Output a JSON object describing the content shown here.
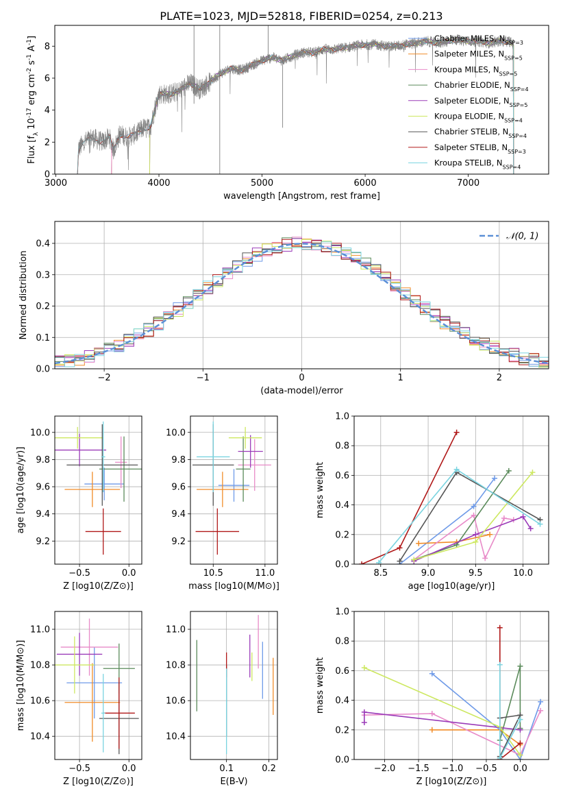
{
  "figure": {
    "title": "PLATE=1023, MJD=52818, FIBERID=0254, z=0.213"
  },
  "palette": [
    "#6e9ae8",
    "#f08c28",
    "#e88ac8",
    "#5a8a5a",
    "#9a3ab8",
    "#cde860",
    "#555555",
    "#b01818",
    "#7ad4e0"
  ],
  "chart_data": [
    {
      "id": "spectrum",
      "type": "line",
      "title": "PLATE=1023, MJD=52818, FIBERID=0254, z=0.213",
      "xlabel": "wavelength [Angstrom, rest frame]",
      "ylabel": "Flux [f_λ 10^-17 erg cm^-2 s^-1 A^-1]",
      "xlim": [
        2990,
        7780
      ],
      "ylim": [
        0,
        9.3
      ],
      "xticks": [
        3000,
        4000,
        5000,
        6000,
        7000
      ],
      "yticks": [
        0,
        2,
        4,
        6,
        8
      ],
      "grid": false,
      "legend_position": "right",
      "data_trace_color": "#808080",
      "data_trace_points": [
        [
          3210,
          0
        ],
        [
          3220,
          1.6
        ],
        [
          3280,
          2.0
        ],
        [
          3350,
          2.3
        ],
        [
          3450,
          2.0
        ],
        [
          3520,
          2.3
        ],
        [
          3560,
          1.5
        ],
        [
          3620,
          2.5
        ],
        [
          3700,
          2.3
        ],
        [
          3800,
          2.6
        ],
        [
          3850,
          2.9
        ],
        [
          3880,
          2.8
        ],
        [
          3920,
          3.0
        ],
        [
          3960,
          4.1
        ],
        [
          4000,
          5.0
        ],
        [
          4100,
          5.0
        ],
        [
          4200,
          5.2
        ],
        [
          4300,
          5.7
        ],
        [
          4400,
          5.3
        ],
        [
          4500,
          5.8
        ],
        [
          4600,
          6.3
        ],
        [
          4700,
          6.6
        ],
        [
          4800,
          6.5
        ],
        [
          4900,
          6.8
        ],
        [
          5000,
          7.1
        ],
        [
          5100,
          7.3
        ],
        [
          5200,
          7.1
        ],
        [
          5300,
          7.4
        ],
        [
          5400,
          7.6
        ],
        [
          5500,
          7.6
        ],
        [
          5600,
          7.8
        ],
        [
          5700,
          7.8
        ],
        [
          5800,
          7.9
        ],
        [
          5900,
          8.0
        ],
        [
          6000,
          8.1
        ],
        [
          6100,
          8.1
        ],
        [
          6200,
          8.0
        ],
        [
          6300,
          8.0
        ],
        [
          6400,
          8.1
        ],
        [
          6500,
          8.2
        ],
        [
          6600,
          8.3
        ],
        [
          6700,
          8.2
        ],
        [
          6800,
          8.3
        ],
        [
          6900,
          8.4
        ],
        [
          7000,
          8.3
        ],
        [
          7100,
          8.3
        ],
        [
          7200,
          8.2
        ],
        [
          7300,
          8.3
        ],
        [
          7400,
          8.3
        ],
        [
          7440,
          8.1
        ]
      ],
      "series": [
        {
          "name": "Chabrier MILES, N_SSP=3",
          "color": "#6e9ae8",
          "x_start": 3540
        },
        {
          "name": "Salpeter MILES, N_SSP=5",
          "color": "#f08c28",
          "x_start": 3540
        },
        {
          "name": "Kroupa MILES, N_SSP=5",
          "color": "#e88ac8",
          "x_start": 3540
        },
        {
          "name": "Chabrier ELODIE, N_SSP=4",
          "color": "#5a8a5a",
          "x_start": 3910
        },
        {
          "name": "Salpeter ELODIE, N_SSP=5",
          "color": "#9a3ab8",
          "x_start": 3910
        },
        {
          "name": "Kroupa ELODIE, N_SSP=4",
          "color": "#cde860",
          "x_start": 3910
        },
        {
          "name": "Chabrier STELIB, N_SSP=4",
          "color": "#555555",
          "x_start": 3210
        },
        {
          "name": "Salpeter STELIB, N_SSP=3",
          "color": "#b01818",
          "x_start": 3210
        },
        {
          "name": "Kroupa STELIB, N_SSP=4",
          "color": "#7ad4e0",
          "x_start": 3210
        }
      ]
    },
    {
      "id": "residuals",
      "type": "line",
      "xlabel": "(data-model)/error",
      "ylabel": "Normed distribution",
      "xlim": [
        -2.5,
        2.5
      ],
      "ylim": [
        0,
        0.47
      ],
      "xticks": [
        -2,
        -1,
        0,
        1,
        2
      ],
      "yticks": [
        0.0,
        0.1,
        0.2,
        0.3,
        0.4
      ],
      "grid": true,
      "legend_position": "top-right",
      "reference": {
        "name": "𝒩(0, 1)",
        "color": "#5b8fd6",
        "mean": 0,
        "sigma": 1
      },
      "bin_width": 0.1,
      "histogram_x_start": -2.5
    },
    {
      "id": "age-vs-Z",
      "type": "scatter",
      "xlabel": "Z [log10(Z/Z⊙)]",
      "ylabel": "age [log10(age/yr)]",
      "xlim": [
        -0.75,
        0.13
      ],
      "ylim": [
        9.03,
        10.12
      ],
      "xticks": [
        -0.5,
        0.0
      ],
      "yticks": [
        9.2,
        9.4,
        9.6,
        9.8,
        10.0
      ],
      "grid": true,
      "points": [
        {
          "color": "#6e9ae8",
          "x": -0.25,
          "y": 9.62,
          "xerr": 0.2,
          "yerr": 0.12
        },
        {
          "color": "#f08c28",
          "x": -0.37,
          "y": 9.58,
          "xerr": 0.28,
          "yerr": 0.13
        },
        {
          "color": "#e88ac8",
          "x": -0.08,
          "y": 9.78,
          "xerr": 0.06,
          "yerr": 0.19
        },
        {
          "color": "#5a8a5a",
          "x": -0.05,
          "y": 9.73,
          "xerr": 0.25,
          "yerr": 0.24
        },
        {
          "color": "#9a3ab8",
          "x": -0.5,
          "y": 9.87,
          "xerr": 0.27,
          "yerr": 0.12
        },
        {
          "color": "#cde860",
          "x": -0.52,
          "y": 9.96,
          "xerr": 0.26,
          "yerr": 0.08
        },
        {
          "color": "#555555",
          "x": -0.27,
          "y": 9.76,
          "xerr": 0.36,
          "yerr": 0.3
        },
        {
          "color": "#b01818",
          "x": -0.26,
          "y": 9.27,
          "xerr": 0.18,
          "yerr": 0.17
        },
        {
          "color": "#7ad4e0",
          "x": -0.26,
          "y": 9.82,
          "xerr": 0.02,
          "yerr": 0.26
        }
      ]
    },
    {
      "id": "age-vs-mass",
      "type": "scatter",
      "xlabel": "mass [log10(M/M⊙)]",
      "ylabel": "",
      "xlim": [
        10.28,
        11.12
      ],
      "ylim": [
        9.03,
        10.12
      ],
      "xticks": [
        10.5,
        11.0
      ],
      "yticks": [
        9.2,
        9.4,
        9.6,
        9.8,
        10.0
      ],
      "grid": true,
      "points": [
        {
          "color": "#6e9ae8",
          "x": 10.7,
          "y": 9.61,
          "xerr": 0.15,
          "yerr": 0.12
        },
        {
          "color": "#f08c28",
          "x": 10.59,
          "y": 9.58,
          "xerr": 0.25,
          "yerr": 0.13
        },
        {
          "color": "#e88ac8",
          "x": 10.9,
          "y": 9.76,
          "xerr": 0.16,
          "yerr": 0.19
        },
        {
          "color": "#5a8a5a",
          "x": 10.79,
          "y": 9.73,
          "xerr": 0.07,
          "yerr": 0.24
        },
        {
          "color": "#9a3ab8",
          "x": 10.86,
          "y": 9.86,
          "xerr": 0.12,
          "yerr": 0.12
        },
        {
          "color": "#cde860",
          "x": 10.81,
          "y": 9.96,
          "xerr": 0.16,
          "yerr": 0.08
        },
        {
          "color": "#555555",
          "x": 10.5,
          "y": 9.76,
          "xerr": 0.2,
          "yerr": 0.3
        },
        {
          "color": "#b01818",
          "x": 10.54,
          "y": 9.27,
          "xerr": 0.21,
          "yerr": 0.17
        },
        {
          "color": "#7ad4e0",
          "x": 10.5,
          "y": 9.82,
          "xerr": 0.16,
          "yerr": 0.26
        }
      ]
    },
    {
      "id": "weight-vs-age",
      "type": "line",
      "xlabel": "age [log10(age/yr)]",
      "ylabel": "mass weight",
      "xlim": [
        8.22,
        10.27
      ],
      "ylim": [
        0,
        1.0
      ],
      "xticks": [
        8.5,
        9.0,
        9.5,
        10.0
      ],
      "yticks": [
        0.0,
        0.2,
        0.4,
        0.6,
        0.8,
        1.0
      ],
      "grid": true,
      "series": [
        {
          "color": "#6e9ae8",
          "x": [
            8.7,
            9.48,
            9.7
          ],
          "y": [
            0.0,
            0.39,
            0.58
          ]
        },
        {
          "color": "#f08c28",
          "x": [
            8.9,
            9.3,
            9.65
          ],
          "y": [
            0.14,
            0.15,
            0.2
          ]
        },
        {
          "color": "#e88ac8",
          "x": [
            8.85,
            9.48,
            9.6,
            9.8,
            9.9
          ],
          "y": [
            0.03,
            0.33,
            0.04,
            0.31,
            0.3
          ]
        },
        {
          "color": "#5a8a5a",
          "x": [
            8.85,
            9.3,
            9.85
          ],
          "y": [
            0.03,
            0.13,
            0.63
          ]
        },
        {
          "color": "#9a3ab8",
          "x": [
            8.85,
            9.5,
            10.0,
            10.08
          ],
          "y": [
            0.02,
            0.2,
            0.32,
            0.24
          ]
        },
        {
          "color": "#cde860",
          "x": [
            8.85,
            9.5,
            10.1
          ],
          "y": [
            0.03,
            0.15,
            0.62
          ]
        },
        {
          "color": "#555555",
          "x": [
            8.7,
            9.3,
            10.18
          ],
          "y": [
            0.02,
            0.62,
            0.3
          ]
        },
        {
          "color": "#b01818",
          "x": [
            8.3,
            8.7,
            9.3
          ],
          "y": [
            0.0,
            0.11,
            0.89
          ]
        },
        {
          "color": "#7ad4e0",
          "x": [
            8.48,
            9.3,
            10.18
          ],
          "y": [
            0.01,
            0.64,
            0.27
          ]
        }
      ]
    },
    {
      "id": "mass-vs-Z",
      "type": "scatter",
      "xlabel": "Z [log10(Z/Z⊙)]",
      "ylabel": "mass [log10(M/M⊙)]",
      "xlim": [
        -0.75,
        0.13
      ],
      "ylim": [
        10.27,
        11.1
      ],
      "xticks": [
        -0.5,
        0.0
      ],
      "yticks": [
        10.4,
        10.6,
        10.8,
        11.0
      ],
      "grid": true,
      "points": [
        {
          "color": "#6e9ae8",
          "x": -0.35,
          "y": 10.7,
          "xerr": 0.28,
          "yerr": 0.2
        },
        {
          "color": "#f08c28",
          "x": -0.37,
          "y": 10.59,
          "xerr": 0.28,
          "yerr": 0.22
        },
        {
          "color": "#e88ac8",
          "x": -0.4,
          "y": 10.9,
          "xerr": 0.29,
          "yerr": 0.16
        },
        {
          "color": "#5a8a5a",
          "x": -0.1,
          "y": 10.78,
          "xerr": 0.16,
          "yerr": 0.14
        },
        {
          "color": "#9a3ab8",
          "x": -0.5,
          "y": 10.86,
          "xerr": 0.23,
          "yerr": 0.12
        },
        {
          "color": "#cde860",
          "x": -0.55,
          "y": 10.8,
          "xerr": 0.2,
          "yerr": 0.16
        },
        {
          "color": "#555555",
          "x": -0.1,
          "y": 10.5,
          "xerr": 0.2,
          "yerr": 0.2
        },
        {
          "color": "#b01818",
          "x": -0.1,
          "y": 10.53,
          "xerr": 0.16,
          "yerr": 0.2
        },
        {
          "color": "#7ad4e0",
          "x": -0.26,
          "y": 10.53,
          "xerr": 0.02,
          "yerr": 0.22
        }
      ]
    },
    {
      "id": "mass-vs-ebv",
      "type": "scatter",
      "xlabel": "E(B-V)",
      "ylabel": "",
      "xlim": [
        0.015,
        0.22
      ],
      "ylim": [
        10.27,
        11.1
      ],
      "xticks": [
        0.1,
        0.2
      ],
      "yticks": [
        10.4,
        10.6,
        10.8,
        11.0
      ],
      "grid": true,
      "points": [
        {
          "color": "#6e9ae8",
          "x": 0.185,
          "y": 10.77,
          "xerr": 0,
          "yerr": 0.16
        },
        {
          "color": "#f08c28",
          "x": 0.21,
          "y": 10.68,
          "xerr": 0,
          "yerr": 0.16
        },
        {
          "color": "#e88ac8",
          "x": 0.175,
          "y": 10.93,
          "xerr": 0,
          "yerr": 0.15
        },
        {
          "color": "#5a8a5a",
          "x": 0.03,
          "y": 10.74,
          "xerr": 0,
          "yerr": 0.2
        },
        {
          "color": "#9a3ab8",
          "x": 0.155,
          "y": 10.85,
          "xerr": 0,
          "yerr": 0.12
        },
        {
          "color": "#cde860",
          "x": 0.16,
          "y": 10.79,
          "xerr": 0,
          "yerr": 0.08
        },
        {
          "color": "#555555",
          "x": 0.1,
          "y": 10.6,
          "xerr": 0,
          "yerr": 0.2
        },
        {
          "color": "#b01818",
          "x": 0.1,
          "y": 10.8,
          "xerr": 0,
          "yerr": 0.07
        },
        {
          "color": "#7ad4e0",
          "x": 0.1,
          "y": 10.54,
          "xerr": 0,
          "yerr": 0.24
        }
      ]
    },
    {
      "id": "weight-vs-Z",
      "type": "line",
      "xlabel": "Z [log10(Z/Z⊙)]",
      "ylabel": "mass weight",
      "xlim": [
        -2.45,
        0.42
      ],
      "ylim": [
        0,
        1.0
      ],
      "xticks": [
        -2.0,
        -1.5,
        -1.0,
        -0.5,
        0.0
      ],
      "yticks": [
        0.0,
        0.2,
        0.4,
        0.6,
        0.8,
        1.0
      ],
      "grid": true,
      "series": [
        {
          "color": "#6e9ae8",
          "x": [
            -1.3,
            -0.3,
            0.0,
            0.3
          ],
          "y": [
            0.58,
            0.2,
            0.0,
            0.39
          ]
        },
        {
          "color": "#f08c28",
          "x": [
            -1.3,
            -0.3,
            0.0
          ],
          "y": [
            0.2,
            0.2,
            0.1
          ]
        },
        {
          "color": "#e88ac8",
          "x": [
            -2.3,
            -1.3,
            0.0,
            0.3
          ],
          "y": [
            0.3,
            0.31,
            0.03,
            0.33
          ]
        },
        {
          "color": "#5a8a5a",
          "x": [
            -0.3,
            0.0,
            0.0
          ],
          "y": [
            0.13,
            0.63,
            0.21
          ]
        },
        {
          "color": "#9a3ab8",
          "x": [
            -2.3,
            -2.3,
            0.0
          ],
          "y": [
            0.25,
            0.32,
            0.2
          ]
        },
        {
          "color": "#cde860",
          "x": [
            -2.3,
            -0.3,
            0.0
          ],
          "y": [
            0.62,
            0.22,
            0.03
          ]
        },
        {
          "color": "#555555",
          "x": [
            -0.3,
            0.0,
            -0.3
          ],
          "y": [
            0.02,
            0.3,
            0.28
          ]
        },
        {
          "color": "#b01818",
          "x": [
            -0.3,
            -0.3,
            0.0
          ],
          "y": [
            0.89,
            0.0,
            0.11
          ]
        },
        {
          "color": "#7ad4e0",
          "x": [
            -0.3,
            -0.3,
            0.0
          ],
          "y": [
            0.64,
            0.01,
            0.27
          ]
        }
      ]
    }
  ]
}
